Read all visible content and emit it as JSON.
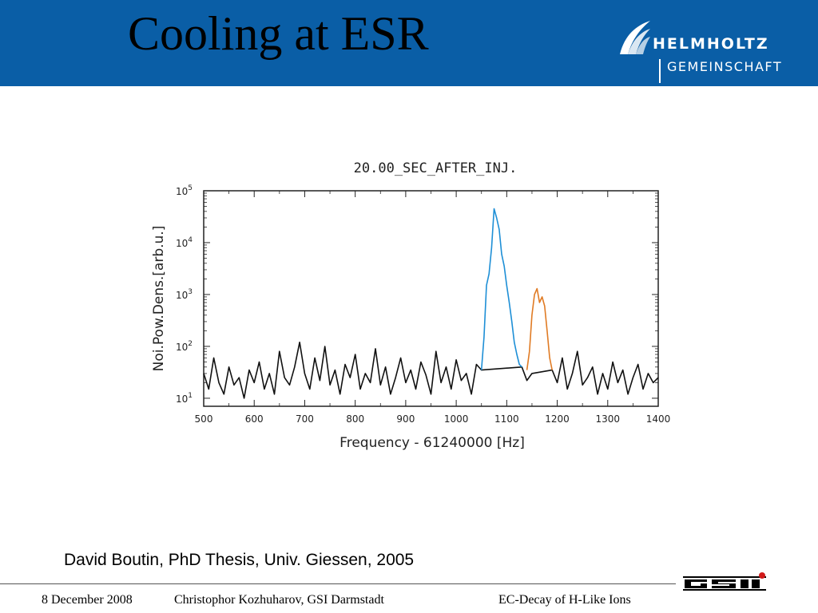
{
  "slide": {
    "title": "Cooling at ESR",
    "logo": {
      "line1": "HELMHOLTZ",
      "line2": "GEMEINSCHAFT"
    },
    "citation": "David Boutin, PhD Thesis, Univ. Giessen, 2005",
    "footer": {
      "date": "8 December 2008",
      "author": "Christophor Kozhuharov, GSI Darmstadt",
      "topic": "EC-Decay of H-Like Ions"
    },
    "gsi_logo": "GSI"
  },
  "colors": {
    "header": "#0a5ea6",
    "noise": "#111111",
    "peak1": "#1e8fd6",
    "peak2": "#e07b24"
  },
  "chart_data": {
    "type": "line",
    "title": "20.00_SEC_AFTER_INJ.",
    "xlabel": "Frequency - 61240000 [Hz]",
    "ylabel": "Noi.Pow.Dens.[arb.u.]",
    "xlim": [
      500,
      1400
    ],
    "ylim": [
      7,
      100000
    ],
    "yscale": "log",
    "x_ticks": [
      500,
      600,
      700,
      800,
      900,
      1000,
      1100,
      1200,
      1300,
      1400
    ],
    "y_ticks": [
      {
        "value": 10,
        "label": "10",
        "exp": "1"
      },
      {
        "value": 100,
        "label": "10",
        "exp": "2"
      },
      {
        "value": 1000,
        "label": "10",
        "exp": "3"
      },
      {
        "value": 10000,
        "label": "10",
        "exp": "4"
      },
      {
        "value": 100000,
        "label": "10",
        "exp": "5"
      }
    ],
    "series": [
      {
        "color_key": "noise",
        "x": [
          500,
          510,
          520,
          530,
          540,
          550,
          560,
          570,
          580,
          590,
          600,
          610,
          620,
          630,
          640,
          650,
          660,
          670,
          680,
          690,
          700,
          710,
          720,
          730,
          740,
          750,
          760,
          770,
          780,
          790,
          800,
          810,
          820,
          830,
          840,
          850,
          860,
          870,
          880,
          890,
          900,
          910,
          920,
          930,
          940,
          950,
          960,
          970,
          980,
          990,
          1000,
          1010,
          1020,
          1030,
          1040,
          1050,
          1130,
          1140,
          1150,
          1190,
          1200,
          1210,
          1220,
          1230,
          1240,
          1250,
          1260,
          1270,
          1280,
          1290,
          1300,
          1310,
          1320,
          1330,
          1340,
          1350,
          1360,
          1370,
          1380,
          1390,
          1400
        ],
        "y": [
          30,
          15,
          60,
          20,
          12,
          40,
          18,
          25,
          10,
          35,
          20,
          50,
          15,
          30,
          12,
          80,
          25,
          18,
          40,
          120,
          30,
          15,
          60,
          22,
          100,
          18,
          35,
          12,
          45,
          25,
          70,
          15,
          30,
          20,
          90,
          18,
          40,
          12,
          25,
          60,
          20,
          35,
          15,
          50,
          28,
          12,
          80,
          20,
          40,
          15,
          55,
          22,
          30,
          12,
          45,
          35,
          40,
          22,
          30,
          35,
          20,
          60,
          15,
          30,
          80,
          18,
          25,
          40,
          12,
          30,
          15,
          50,
          20,
          35,
          12,
          25,
          45,
          15,
          30,
          20,
          25
        ]
      },
      {
        "color_key": "peak1",
        "x": [
          1050,
          1055,
          1060,
          1065,
          1070,
          1075,
          1080,
          1085,
          1090,
          1095,
          1100,
          1105,
          1110,
          1115,
          1120,
          1125,
          1130
        ],
        "y": [
          35,
          150,
          1500,
          2500,
          8000,
          45000,
          30000,
          18000,
          6000,
          3500,
          1500,
          700,
          300,
          120,
          70,
          45,
          40
        ]
      },
      {
        "color_key": "peak2",
        "x": [
          1140,
          1145,
          1150,
          1155,
          1160,
          1165,
          1170,
          1175,
          1180,
          1185,
          1190
        ],
        "y": [
          35,
          80,
          400,
          1000,
          1300,
          700,
          900,
          600,
          200,
          60,
          35
        ]
      }
    ]
  }
}
